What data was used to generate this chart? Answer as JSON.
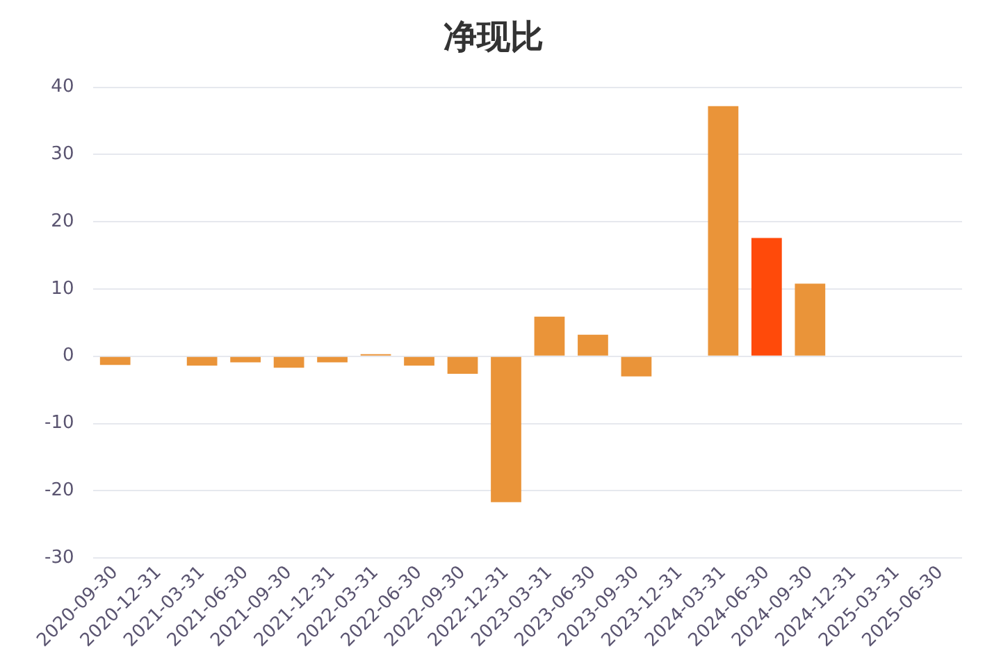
{
  "chart_data": {
    "type": "bar",
    "title": "净现比",
    "categories": [
      "2020-09-30",
      "2020-12-31",
      "2021-03-31",
      "2021-06-30",
      "2021-09-30",
      "2021-12-31",
      "2022-03-31",
      "2022-06-30",
      "2022-09-30",
      "2022-12-31",
      "2023-03-31",
      "2023-06-30",
      "2023-09-30",
      "2023-12-31",
      "2024-03-31",
      "2024-06-30",
      "2024-09-30",
      "2024-12-31",
      "2025-03-31",
      "2025-06-30"
    ],
    "values": [
      -1.3,
      null,
      -1.4,
      -0.9,
      -1.7,
      -0.9,
      0.3,
      -1.4,
      -2.6,
      -21.7,
      5.9,
      3.2,
      -3.0,
      null,
      37.2,
      17.6,
      10.8,
      null,
      null,
      null
    ],
    "colors": [
      "#ea9439",
      "#ea9439",
      "#ea9439",
      "#ea9439",
      "#ea9439",
      "#ea9439",
      "#ea9439",
      "#ea9439",
      "#ea9439",
      "#ea9439",
      "#ea9439",
      "#ea9439",
      "#ea9439",
      "#ea9439",
      "#ea9439",
      "#ff4a0a",
      "#ea9439",
      "#ea9439",
      "#ea9439",
      "#ea9439"
    ],
    "ylim": [
      -30,
      40
    ],
    "yticks": [
      -30,
      -20,
      -10,
      0,
      10,
      20,
      30,
      40
    ],
    "grid": "y",
    "legend": false
  }
}
